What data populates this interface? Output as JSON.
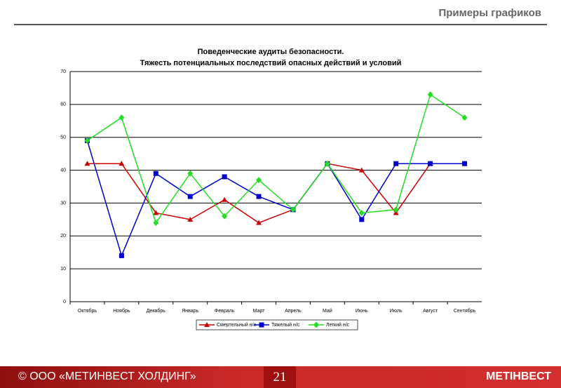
{
  "slide": {
    "header": "Примеры графиков",
    "footer_text": "© ООО «МЕТИНВЕСТ ХОЛДИНГ»",
    "page_number": "21",
    "logo": "МЕТІНВЕСТ"
  },
  "chart_data": {
    "type": "line",
    "title": [
      "Поведенческие аудиты безопасности.",
      "Тяжесть потенциальных последствий опасных действий и условий"
    ],
    "categories": [
      "Октябрь",
      "Ноябрь",
      "Декабрь",
      "Январь",
      "Февраль",
      "Март",
      "Апрель",
      "Май",
      "Июнь",
      "Июль",
      "Август",
      "Сентябрь"
    ],
    "series": [
      {
        "name": "Смертельный н/с",
        "color": "#cc0000",
        "marker": "triangle",
        "values": [
          42,
          42,
          27,
          25,
          31,
          24,
          28,
          42,
          40,
          27,
          42,
          42
        ]
      },
      {
        "name": "Тяжелый н/с",
        "color": "#0000cc",
        "marker": "square",
        "values": [
          49,
          14,
          39,
          32,
          38,
          32,
          28,
          42,
          25,
          42,
          42,
          42
        ]
      },
      {
        "name": "Легкий н/с",
        "color": "#22dd22",
        "marker": "diamond",
        "values": [
          49,
          56,
          24,
          39,
          26,
          37,
          28,
          42,
          27,
          28,
          63,
          56
        ]
      }
    ],
    "ylim": [
      0,
      70
    ],
    "yticks": [
      0,
      10,
      20,
      30,
      40,
      50,
      60,
      70
    ],
    "grid": true,
    "legend": "bottom"
  }
}
